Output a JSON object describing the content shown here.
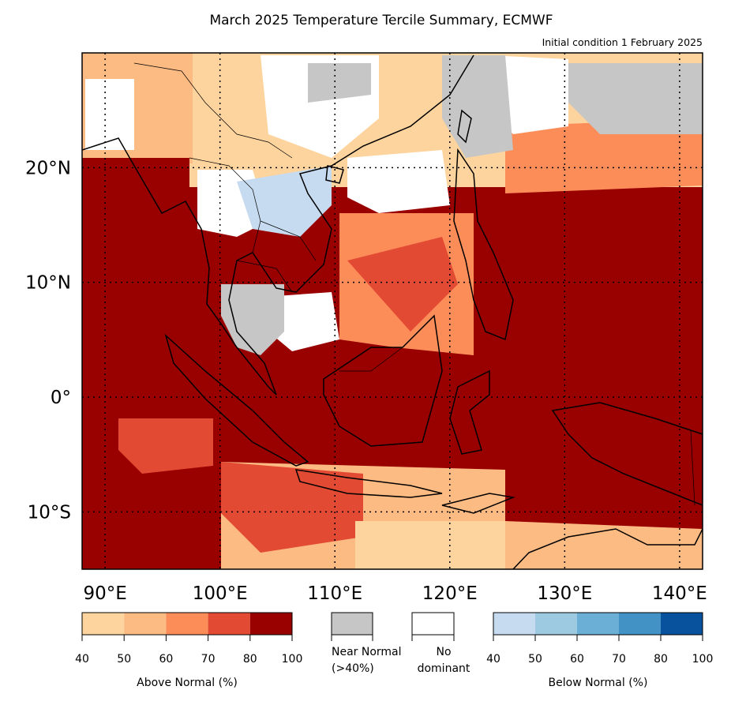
{
  "title": "March 2025 Temperature Tercile Summary, ECMWF",
  "subtitle": "Initial condition 1 February 2025",
  "map": {
    "lon_range": [
      88,
      142
    ],
    "lat_range": [
      -15,
      30
    ],
    "lat_ticks": [
      {
        "value": 20,
        "label": "20°N"
      },
      {
        "value": 10,
        "label": "10°N"
      },
      {
        "value": 0,
        "label": "0°"
      },
      {
        "value": -10,
        "label": "10°S"
      }
    ],
    "lon_ticks": [
      {
        "value": 90,
        "label": "90°E"
      },
      {
        "value": 100,
        "label": "100°E"
      },
      {
        "value": 110,
        "label": "110°E"
      },
      {
        "value": 120,
        "label": "120°E"
      },
      {
        "value": 130,
        "label": "130°E"
      },
      {
        "value": 140,
        "label": "140°E"
      }
    ],
    "gridlines": "dotted"
  },
  "legend": {
    "above_normal": {
      "label": "Above Normal (%)",
      "ticks": [
        "40",
        "50",
        "60",
        "70",
        "80",
        "100"
      ],
      "colors": [
        "#fdd49e",
        "#fdbb84",
        "#fc8d59",
        "#e34a33",
        "#990000"
      ]
    },
    "near_normal": {
      "label_line1": "Near Normal",
      "label_line2": "(>40%)",
      "color": "#c6c6c6"
    },
    "no_dominant": {
      "label_line1": "No",
      "label_line2": "dominant",
      "color": "#ffffff"
    },
    "below_normal": {
      "label": "Below Normal (%)",
      "ticks": [
        "40",
        "50",
        "60",
        "70",
        "80",
        "100"
      ],
      "colors": [
        "#c6dbef",
        "#9ecae1",
        "#6baed6",
        "#4292c6",
        "#08519c"
      ]
    }
  }
}
